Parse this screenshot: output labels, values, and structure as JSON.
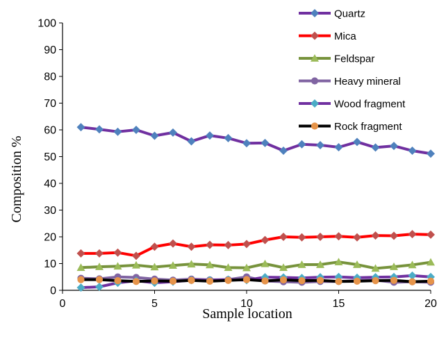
{
  "chart_data": {
    "type": "line",
    "xlabel": "Sample location",
    "ylabel": "Composition  %",
    "xlim": [
      0,
      20
    ],
    "ylim": [
      0,
      100
    ],
    "x_ticks": [
      0,
      5,
      10,
      15,
      20
    ],
    "y_ticks": [
      0,
      10,
      20,
      30,
      40,
      50,
      60,
      70,
      80,
      90,
      100
    ],
    "grid": false,
    "legend_position": "top-right",
    "x": [
      1,
      2,
      3,
      4,
      5,
      6,
      7,
      8,
      9,
      10,
      11,
      12,
      13,
      14,
      15,
      16,
      17,
      18,
      19,
      20
    ],
    "series": [
      {
        "name": "Quartz",
        "line_color": "#7030a0",
        "marker": "diamond",
        "marker_color": "#4f81bd",
        "values": [
          61,
          60.2,
          59.3,
          60,
          57.8,
          59,
          55.7,
          57.9,
          56.9,
          55,
          55.1,
          52.2,
          54.6,
          54.3,
          53.5,
          55.5,
          53.4,
          54,
          52.2,
          51.1
        ]
      },
      {
        "name": "Mica",
        "line_color": "#ff0000",
        "marker": "diamond",
        "marker_color": "#c0504d",
        "values": [
          13.8,
          13.8,
          14.1,
          12.9,
          16.3,
          17.5,
          16.3,
          17,
          16.9,
          17.3,
          18.8,
          20,
          19.8,
          20,
          20.2,
          19.8,
          20.5,
          20.4,
          21,
          20.8
        ]
      },
      {
        "name": "Feldspar",
        "line_color": "#77933c",
        "marker": "triangle",
        "marker_color": "#9bbb59",
        "values": [
          8.5,
          8.8,
          9,
          9.4,
          8.7,
          9.3,
          9.8,
          9.5,
          8.5,
          8.4,
          9.9,
          8.5,
          9.6,
          9.6,
          10.6,
          9.6,
          8.2,
          8.8,
          9.5,
          10.5
        ]
      },
      {
        "name": "Heavy mineral",
        "line_color": "#8064a2",
        "marker": "circle",
        "marker_color": "#8064a2",
        "values": [
          4.5,
          4.3,
          5,
          4.8,
          4.2,
          3.8,
          4.2,
          3.9,
          4,
          5,
          3.5,
          3.2,
          3,
          3.3,
          3.3,
          3.6,
          3.8,
          3,
          3.2,
          3
        ]
      },
      {
        "name": "Wood fragment",
        "line_color": "#7030a0",
        "marker": "diamond",
        "marker_color": "#4bacc6",
        "values": [
          1,
          1.3,
          2.8,
          3.6,
          2.8,
          3.2,
          3.8,
          3.8,
          4,
          3.8,
          4.9,
          4.8,
          4.6,
          4.9,
          5,
          4.7,
          4.9,
          5,
          5.5,
          5
        ]
      },
      {
        "name": "Rock fragment",
        "line_color": "#000000",
        "marker": "circle",
        "marker_color": "#e6944a",
        "values": [
          4,
          4,
          3.6,
          3.3,
          3.5,
          3.4,
          3.7,
          3.4,
          3.7,
          4,
          3.5,
          3.9,
          3.6,
          3.7,
          3.3,
          3.4,
          3.6,
          3.7,
          3.2,
          3.4
        ]
      }
    ]
  }
}
